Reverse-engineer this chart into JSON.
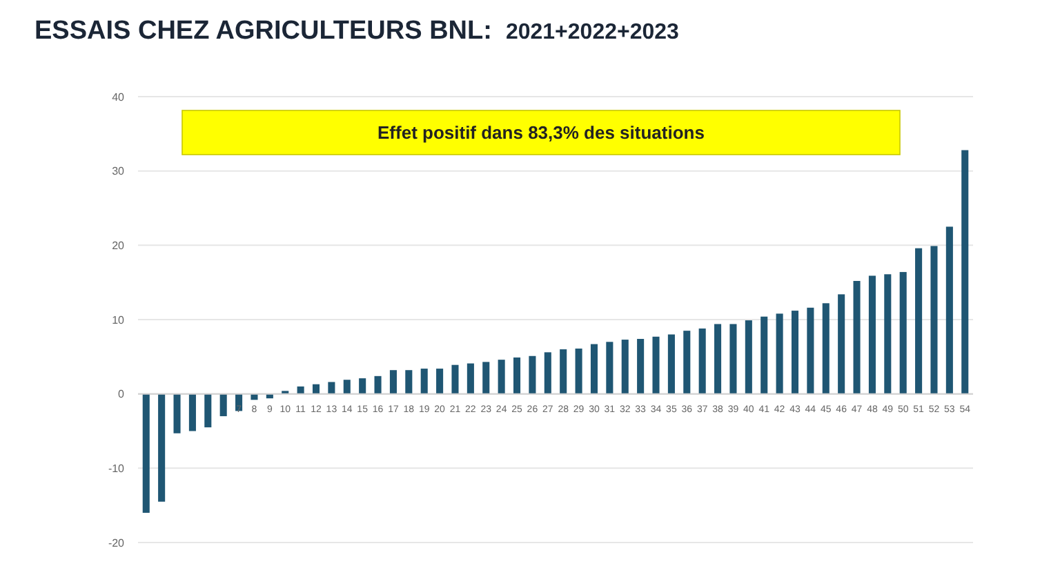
{
  "chart_data": {
    "type": "bar",
    "title": "ESSAIS CHEZ AGRICULTEURS BNL:",
    "subtitle": "2021+2022+2023",
    "categories": [
      null,
      null,
      null,
      null,
      null,
      null,
      "7",
      "8",
      "9",
      "10",
      "11",
      "12",
      "13",
      "14",
      "15",
      "16",
      "17",
      "18",
      "19",
      "20",
      "21",
      "22",
      "23",
      "24",
      "25",
      "26",
      "27",
      "28",
      "29",
      "30",
      "31",
      "32",
      "33",
      "34",
      "35",
      "36",
      "37",
      "38",
      "39",
      "40",
      "41",
      "42",
      "43",
      "44",
      "45",
      "46",
      "47",
      "48",
      "49",
      "50",
      "51",
      "52",
      "53",
      "54"
    ],
    "values": [
      -16,
      -14.5,
      -5.3,
      -5,
      -4.5,
      -3,
      -2.3,
      -0.8,
      -0.6,
      0.4,
      1.0,
      1.3,
      1.6,
      1.9,
      2.1,
      2.4,
      3.2,
      3.2,
      3.4,
      3.4,
      3.9,
      4.1,
      4.3,
      4.6,
      4.9,
      5.1,
      5.6,
      6.0,
      6.1,
      6.7,
      7.0,
      7.3,
      7.4,
      7.7,
      8.0,
      8.5,
      8.8,
      9.4,
      9.4,
      9.9,
      10.4,
      10.8,
      11.2,
      11.6,
      12.2,
      13.4,
      15.2,
      15.9,
      16.1,
      16.4,
      19.6,
      19.9,
      22.5,
      32.8
    ],
    "color": "#1f5673",
    "ylim": [
      -20,
      40
    ],
    "yticks": [
      -20,
      -10,
      0,
      10,
      20,
      30,
      40
    ],
    "grid": "y",
    "annotations": [
      "Effet positif dans 83,3% des situations"
    ]
  }
}
